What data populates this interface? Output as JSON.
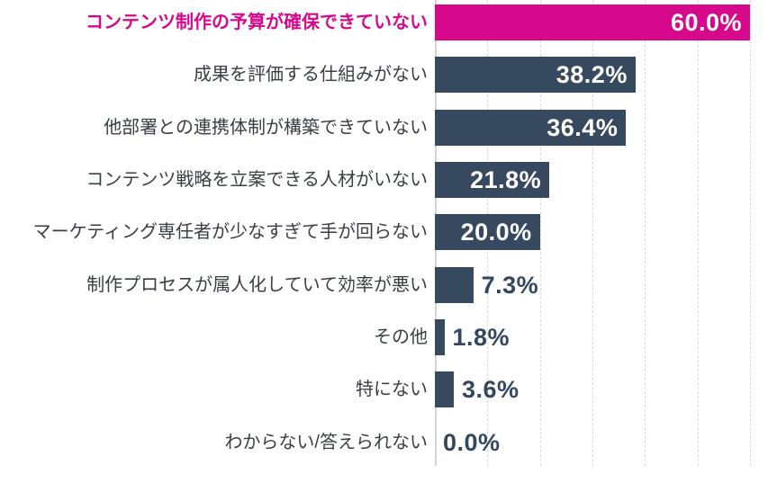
{
  "chart_data": {
    "type": "bar",
    "orientation": "horizontal",
    "title": "",
    "xlabel": "",
    "ylabel": "",
    "unit": "%",
    "xlim": [
      0,
      60
    ],
    "gridlines": {
      "style": "dashed",
      "interval": 10,
      "values": [
        0,
        10,
        20,
        30,
        40,
        50,
        60
      ]
    },
    "legend": "none",
    "categories": [
      "コンテンツ制作の予算が確保できていない",
      "成果を評価する仕組みがない",
      "他部署との連携体制が構築できていない",
      "コンテンツ戦略を立案できる人材がいない",
      "マーケティング専任者が少なすぎて手が回らない",
      "制作プロセスが属人化していて効率が悪い",
      "その他",
      "特にない",
      "わからない/答えられない"
    ],
    "values": [
      60.0,
      38.2,
      36.4,
      21.8,
      20.0,
      7.3,
      1.8,
      3.6,
      0.0
    ],
    "items": [
      {
        "label": "コンテンツ制作の予算が確保できていない",
        "value": 60.0,
        "value_label": "60.0%",
        "highlighted": true,
        "value_position": "inside"
      },
      {
        "label": "成果を評価する仕組みがない",
        "value": 38.2,
        "value_label": "38.2%",
        "highlighted": false,
        "value_position": "inside"
      },
      {
        "label": "他部署との連携体制が構築できていない",
        "value": 36.4,
        "value_label": "36.4%",
        "highlighted": false,
        "value_position": "inside"
      },
      {
        "label": "コンテンツ戦略を立案できる人材がいない",
        "value": 21.8,
        "value_label": "21.8%",
        "highlighted": false,
        "value_position": "inside"
      },
      {
        "label": "マーケティング専任者が少なすぎて手が回らない",
        "value": 20.0,
        "value_label": "20.0%",
        "highlighted": false,
        "value_position": "inside"
      },
      {
        "label": "制作プロセスが属人化していて効率が悪い",
        "value": 7.3,
        "value_label": "7.3%",
        "highlighted": false,
        "value_position": "outside"
      },
      {
        "label": "その他",
        "value": 1.8,
        "value_label": "1.8%",
        "highlighted": false,
        "value_position": "outside"
      },
      {
        "label": "特にない",
        "value": 3.6,
        "value_label": "3.6%",
        "highlighted": false,
        "value_position": "outside"
      },
      {
        "label": "わからない/答えられない",
        "value": 0.0,
        "value_label": "0.0%",
        "highlighted": false,
        "value_position": "outside"
      }
    ],
    "colors": {
      "highlight_bar": "#d6098c",
      "highlight_label": "#d6098c",
      "bar": "#37495e",
      "category_label": "#3a3e45",
      "value_inside": "#ffffff",
      "value_outside": "#33475e",
      "gridline": "#d9dcdf",
      "axis_line": "#d2d6da",
      "background": "#ffffff"
    }
  }
}
